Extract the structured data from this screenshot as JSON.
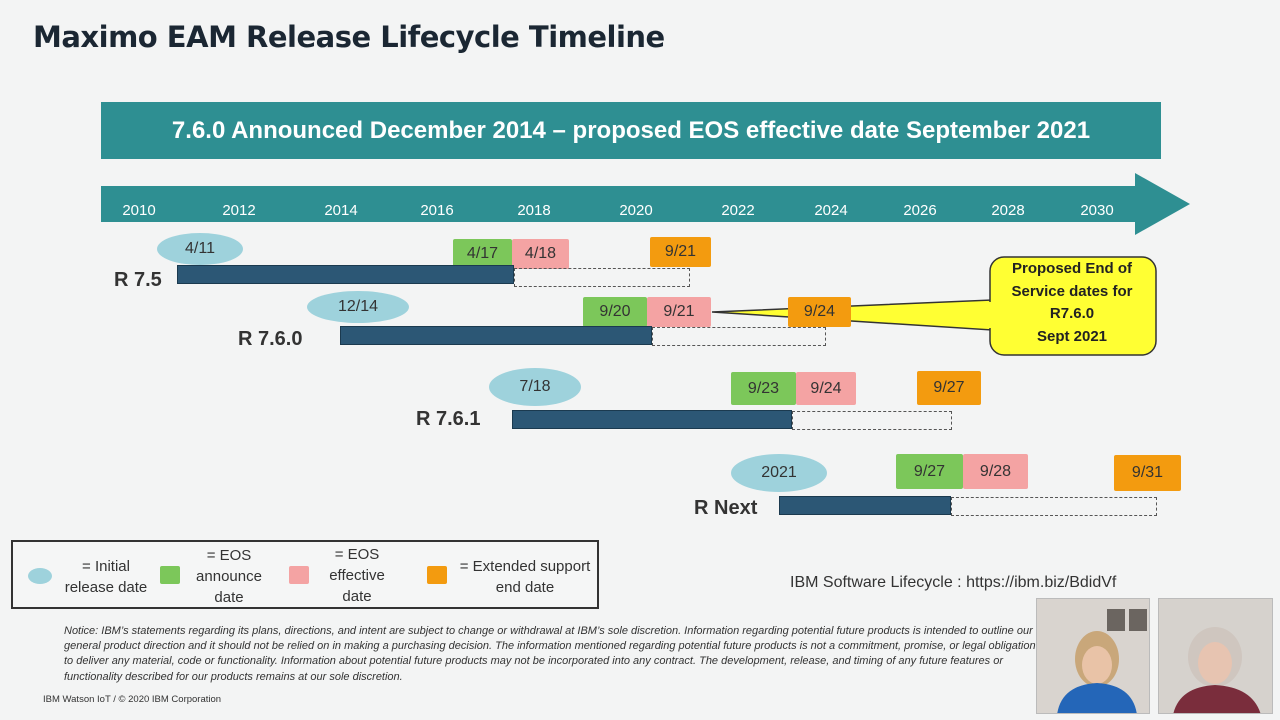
{
  "title": "Maximo EAM Release Lifecycle Timeline",
  "banner": "7.6.0 Announced December 2014 – proposed EOS effective date September 2021",
  "timeline": {
    "years": [
      "2010",
      "2012",
      "2014",
      "2016",
      "2018",
      "2020",
      "2022",
      "2024",
      "2026",
      "2028",
      "2030"
    ],
    "arrow_color": "#2e8f92"
  },
  "releases": [
    {
      "name": "R 7.5",
      "initial": "4/11",
      "eos_announce": "4/17",
      "eos_effective": "4/18",
      "extended": "9/21"
    },
    {
      "name": "R 7.6.0",
      "initial": "12/14",
      "eos_announce": "9/20",
      "eos_effective": "9/21",
      "extended": "9/24"
    },
    {
      "name": "R 7.6.1",
      "initial": "7/18",
      "eos_announce": "9/23",
      "eos_effective": "9/24",
      "extended": "9/27"
    },
    {
      "name": "R Next",
      "initial": "2021",
      "eos_announce": "9/27",
      "eos_effective": "9/28",
      "extended": "9/31"
    }
  ],
  "callout": {
    "line1": "Proposed End of",
    "line2": "Service dates for",
    "line3": "R7.6.0",
    "line4": "Sept 2021",
    "color": "#ffff33"
  },
  "legend": {
    "initial": {
      "line1": "= Initial",
      "line2": "release date"
    },
    "announce": {
      "line1": "= EOS",
      "line2": "announce",
      "line3": "date"
    },
    "effective": {
      "line1": "= EOS",
      "line2": "effective",
      "line3": "date"
    },
    "extended": {
      "line1": "= Extended support",
      "line2": "end date"
    }
  },
  "colors": {
    "initial": "#9ed2dc",
    "eos_announce": "#7cc75a",
    "eos_effective": "#f4a3a3",
    "extended": "#f39b0f",
    "bar": "#2c5775"
  },
  "lifecycle_link": "IBM Software Lifecycle : https://ibm.biz/BdidVf",
  "notice": "Notice: IBM’s statements regarding its plans, directions, and intent are subject to change or withdrawal at IBM’s sole discretion. Information regarding potential future products is intended to outline our general product direction and it should not be relied on in making a purchasing decision. The information mentioned regarding potential future products is not a commitment, promise, or legal obligation to deliver any material, code or functionality. Information about potential future products may not be incorporated into any contract. The development, release, and timing of any future features or functionality described for our products remains at our sole discretion.",
  "footer": "IBM Watson IoT / © 2020 IBM Corporation"
}
